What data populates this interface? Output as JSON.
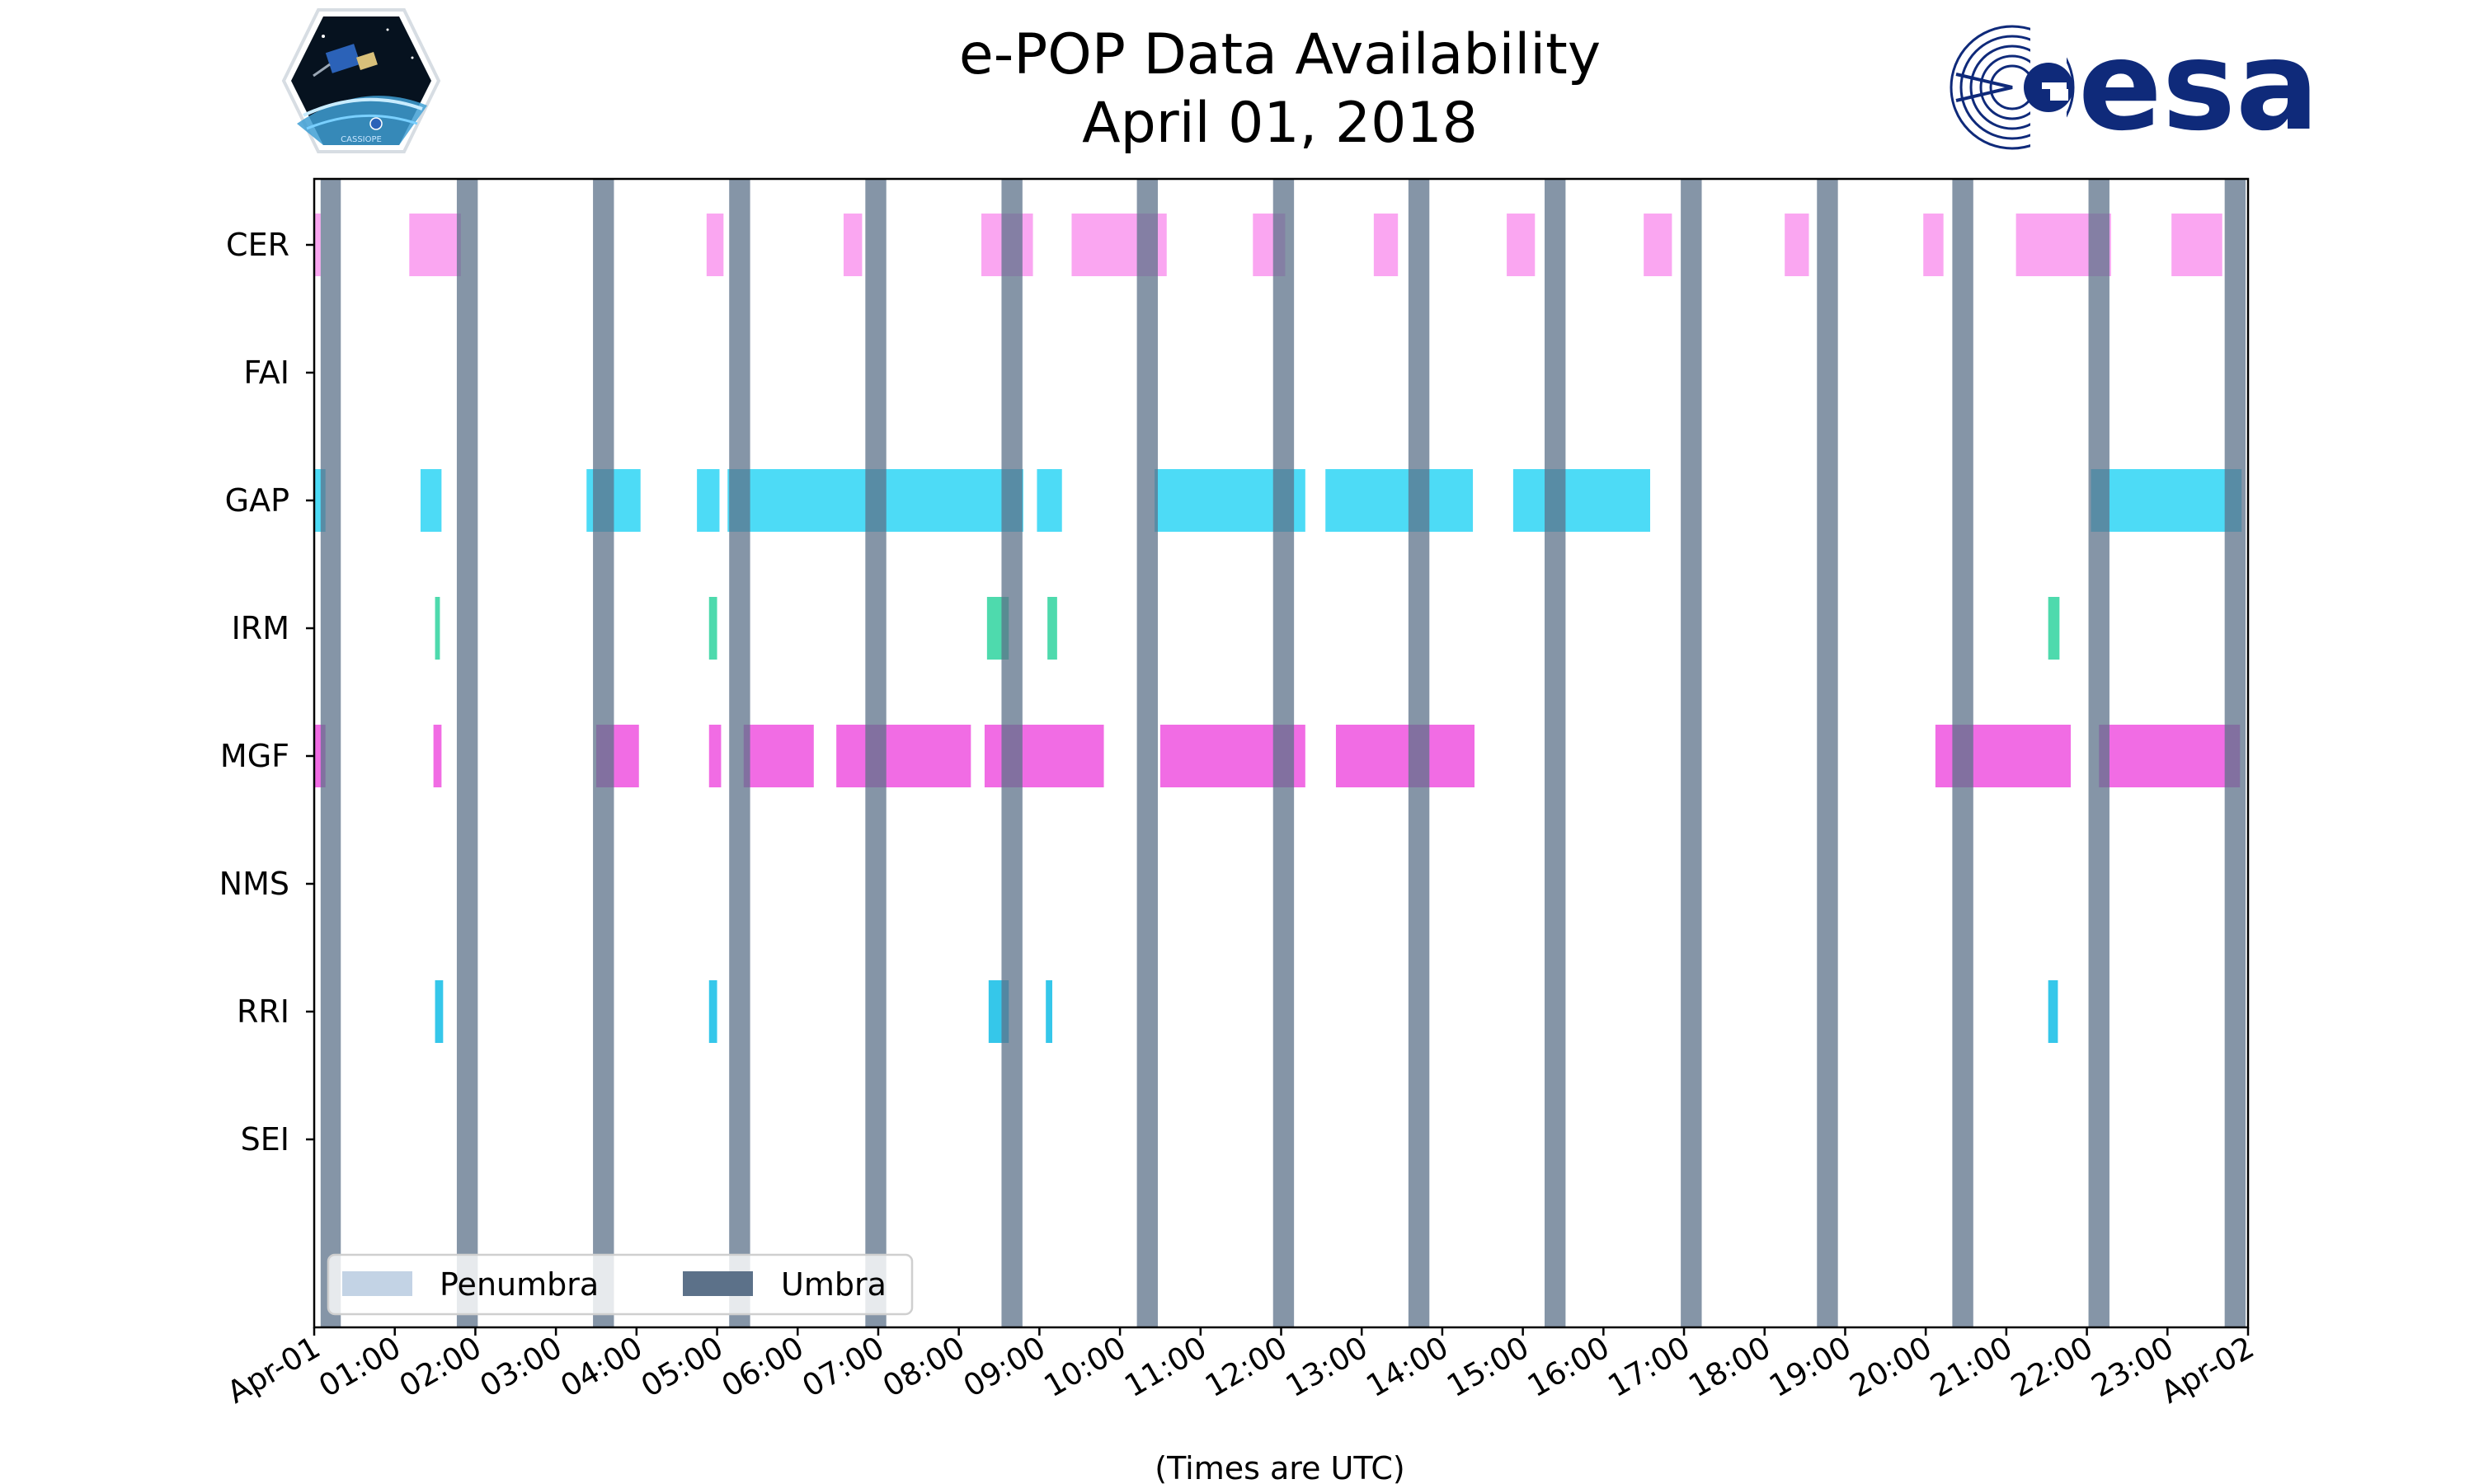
{
  "title": {
    "line1": "e-POP Data Availability",
    "line2": "April 01, 2018"
  },
  "logos": {
    "left": {
      "name": "cassiope-logo",
      "text": "CASSIOPE"
    },
    "right": {
      "name": "esa-logo",
      "text": "esa",
      "color": "#0f2a7a"
    }
  },
  "chart_data": {
    "type": "timeline",
    "xlabel": "(Times are UTC)",
    "xlim": [
      0,
      24
    ],
    "x_unit": "hours UTC",
    "x_ticks": [
      {
        "value": 0,
        "label": "Apr-01"
      },
      {
        "value": 1,
        "label": "01:00"
      },
      {
        "value": 2,
        "label": "02:00"
      },
      {
        "value": 3,
        "label": "03:00"
      },
      {
        "value": 4,
        "label": "04:00"
      },
      {
        "value": 5,
        "label": "05:00"
      },
      {
        "value": 6,
        "label": "06:00"
      },
      {
        "value": 7,
        "label": "07:00"
      },
      {
        "value": 8,
        "label": "08:00"
      },
      {
        "value": 9,
        "label": "09:00"
      },
      {
        "value": 10,
        "label": "10:00"
      },
      {
        "value": 11,
        "label": "11:00"
      },
      {
        "value": 12,
        "label": "12:00"
      },
      {
        "value": 13,
        "label": "13:00"
      },
      {
        "value": 14,
        "label": "14:00"
      },
      {
        "value": 15,
        "label": "15:00"
      },
      {
        "value": 16,
        "label": "16:00"
      },
      {
        "value": 17,
        "label": "17:00"
      },
      {
        "value": 18,
        "label": "18:00"
      },
      {
        "value": 19,
        "label": "19:00"
      },
      {
        "value": 20,
        "label": "20:00"
      },
      {
        "value": 21,
        "label": "21:00"
      },
      {
        "value": 22,
        "label": "22:00"
      },
      {
        "value": 23,
        "label": "23:00"
      },
      {
        "value": 24,
        "label": "Apr-02"
      }
    ],
    "instruments": [
      {
        "name": "CER",
        "color": "#f997ee",
        "intervals": [
          [
            0.0,
            0.08
          ],
          [
            1.18,
            1.82
          ],
          [
            4.87,
            5.08
          ],
          [
            6.57,
            6.8
          ],
          [
            8.28,
            8.92
          ],
          [
            9.4,
            10.58
          ],
          [
            11.65,
            12.05
          ],
          [
            13.15,
            13.45
          ],
          [
            14.8,
            15.15
          ],
          [
            16.5,
            16.85
          ],
          [
            18.25,
            18.55
          ],
          [
            19.97,
            20.22
          ],
          [
            21.12,
            22.3
          ],
          [
            23.05,
            23.68
          ]
        ]
      },
      {
        "name": "FAI",
        "color": "#f997ee",
        "intervals": []
      },
      {
        "name": "GAP",
        "color": "#2ed5f5",
        "intervals": [
          [
            0.0,
            0.14
          ],
          [
            1.32,
            1.58
          ],
          [
            3.38,
            4.05
          ],
          [
            4.75,
            5.03
          ],
          [
            5.13,
            8.8
          ],
          [
            8.97,
            9.28
          ],
          [
            10.43,
            12.3
          ],
          [
            12.55,
            14.38
          ],
          [
            14.88,
            16.58
          ],
          [
            22.05,
            23.92
          ]
        ]
      },
      {
        "name": "IRM",
        "color": "#2fd39f",
        "intervals": [
          [
            1.5,
            1.56
          ],
          [
            4.9,
            5.0
          ],
          [
            8.35,
            8.62
          ],
          [
            9.1,
            9.22
          ],
          [
            21.52,
            21.66
          ]
        ]
      },
      {
        "name": "MGF",
        "color": "#ee52df",
        "intervals": [
          [
            0.0,
            0.14
          ],
          [
            1.48,
            1.58
          ],
          [
            3.5,
            4.03
          ],
          [
            4.9,
            5.05
          ],
          [
            5.33,
            6.2
          ],
          [
            6.48,
            8.15
          ],
          [
            8.32,
            9.8
          ],
          [
            10.5,
            12.3
          ],
          [
            12.68,
            14.4
          ],
          [
            20.12,
            21.8
          ],
          [
            22.15,
            23.9
          ]
        ]
      },
      {
        "name": "NMS",
        "color": "#ee52df",
        "intervals": []
      },
      {
        "name": "RRI",
        "color": "#12bde6",
        "intervals": [
          [
            1.5,
            1.6
          ],
          [
            4.9,
            5.0
          ],
          [
            8.37,
            8.62
          ],
          [
            9.08,
            9.16
          ],
          [
            21.52,
            21.64
          ]
        ]
      },
      {
        "name": "SEI",
        "color": "#12bde6",
        "intervals": []
      }
    ],
    "umbra": {
      "label": "Umbra",
      "color": "#5c7189",
      "intervals": [
        [
          0.08,
          0.33
        ],
        [
          1.77,
          2.03
        ],
        [
          3.46,
          3.72
        ],
        [
          5.15,
          5.41
        ],
        [
          6.84,
          7.1
        ],
        [
          8.53,
          8.79
        ],
        [
          10.21,
          10.47
        ],
        [
          11.9,
          12.16
        ],
        [
          13.58,
          13.84
        ],
        [
          15.27,
          15.53
        ],
        [
          16.96,
          17.22
        ],
        [
          18.65,
          18.91
        ],
        [
          20.33,
          20.59
        ],
        [
          22.02,
          22.28
        ],
        [
          23.71,
          23.97
        ]
      ]
    },
    "penumbra": {
      "label": "Penumbra",
      "color": "#c3d3e5",
      "intervals": []
    },
    "legend": {
      "position": "lower left",
      "entries": [
        "Penumbra",
        "Umbra"
      ]
    },
    "grid": false
  }
}
